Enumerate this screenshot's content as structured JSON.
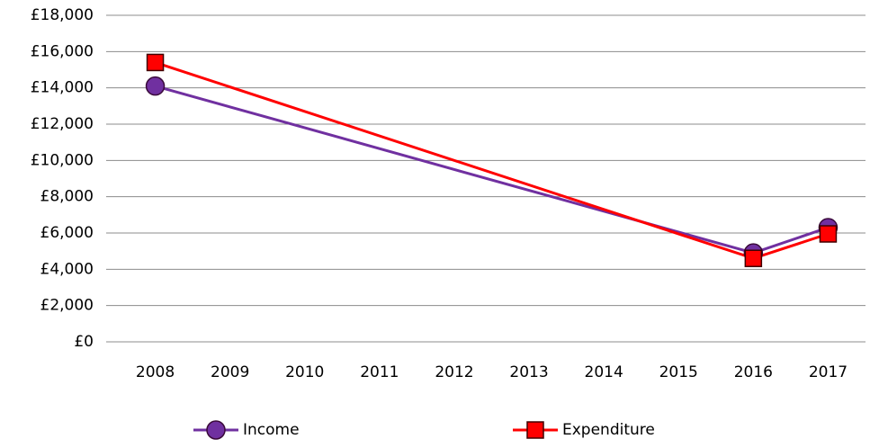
{
  "chart_data": {
    "type": "line",
    "x": [
      2008,
      2016,
      2017
    ],
    "series": [
      {
        "name": "Income",
        "color": "#7030a0",
        "marker": "circle",
        "values": [
          14100,
          4900,
          6300
        ]
      },
      {
        "name": "Expenditure",
        "color": "#ff0000",
        "marker": "square",
        "values": [
          15400,
          4600,
          5950
        ]
      }
    ],
    "xlim": [
      2007.5,
      2017.5
    ],
    "xticks": [
      2008,
      2009,
      2010,
      2011,
      2012,
      2013,
      2014,
      2015,
      2016,
      2017
    ],
    "ylim": [
      0,
      18000
    ],
    "yticks": [
      {
        "value": 0,
        "label": "£0"
      },
      {
        "value": 2000,
        "label": "£2,000"
      },
      {
        "value": 4000,
        "label": "£4,000"
      },
      {
        "value": 6000,
        "label": "£6,000"
      },
      {
        "value": 8000,
        "label": "£8,000"
      },
      {
        "value": 10000,
        "label": "£10,000"
      },
      {
        "value": 12000,
        "label": "£12,000"
      },
      {
        "value": 14000,
        "label": "£14,000"
      },
      {
        "value": 16000,
        "label": "£16,000"
      },
      {
        "value": 18000,
        "label": "£18,000"
      }
    ],
    "grid": true,
    "legend": "bottom"
  }
}
